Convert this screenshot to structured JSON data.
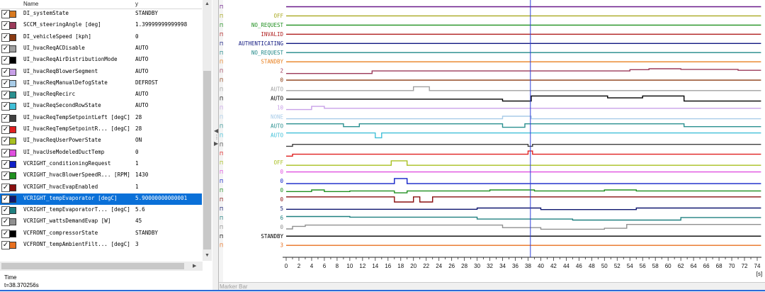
{
  "list": {
    "col_name": "Name",
    "col_value": "y",
    "rows": [
      {
        "name": "DI_systemState",
        "value": "STANDBY",
        "color": "#d97a20"
      },
      {
        "name": "SCCM_steeringAngle [deg]",
        "value": "1.39999999999998",
        "color": "#9b3a5a"
      },
      {
        "name": "DI_vehicleSpeed [kph]",
        "value": "0",
        "color": "#8a3a12"
      },
      {
        "name": "UI_hvacReqACDisable",
        "value": "AUTO",
        "color": "#a0a0a0"
      },
      {
        "name": "UI_hvacReqAirDistributionMode",
        "value": "AUTO",
        "color": "#000000"
      },
      {
        "name": "UI_hvacReqBlowerSegment",
        "value": "AUTO",
        "color": "#c8a0e8"
      },
      {
        "name": "UI_hvacReqManualDefogState",
        "value": "DEFROST",
        "color": "#a8cce8"
      },
      {
        "name": "UI_hvacReqRecirc",
        "value": "AUTO",
        "color": "#2a9090"
      },
      {
        "name": "UI_hvacReqSecondRowState",
        "value": "AUTO",
        "color": "#40c0d8"
      },
      {
        "name": "UI_hvacReqTempSetpointLeft [degC]",
        "value": "28",
        "color": "#404040"
      },
      {
        "name": "UI_hvacReqTempSetpointR... [degC]",
        "value": "28",
        "color": "#e02020"
      },
      {
        "name": "UI_hvacReqUserPowerState",
        "value": "ON",
        "color": "#a8c020"
      },
      {
        "name": "UI_hvacUseModeledDuctTemp",
        "value": "0",
        "color": "#e050e0"
      },
      {
        "name": "VCRIGHT_conditioningRequest",
        "value": "1",
        "color": "#1020c8"
      },
      {
        "name": "VCRIGHT_hvacBlowerSpeedR... [RPM]",
        "value": "1430",
        "color": "#209020"
      },
      {
        "name": "VCRIGHT_hvacEvapEnabled",
        "value": "1",
        "color": "#8a1010"
      },
      {
        "name": "VCRIGHT_tempEvaporator [degC]",
        "value": "5.90000000000001",
        "color": "#101870",
        "selected": true
      },
      {
        "name": "VCRIGHT_tempEvaporatorT... [degC]",
        "value": "5.6",
        "color": "#208080"
      },
      {
        "name": "VCRIGHT_wattsDemandEvap [W]",
        "value": "45",
        "color": "#909090"
      },
      {
        "name": "VCFRONT_compressorState",
        "value": "STANDBY",
        "color": "#000000"
      },
      {
        "name": "VCFRONT_tempAmbientFilt... [degC]",
        "value": "3",
        "color": "#e87020"
      }
    ]
  },
  "time": {
    "label": "Time",
    "value": "t=38.370256s"
  },
  "marker_bar_label": "Marker Bar",
  "plot": {
    "cursor_t": 38.37,
    "axis": {
      "min": 0,
      "max": 74,
      "tick_step": 2,
      "unit": "[s]"
    },
    "lanes": [
      {
        "label": "",
        "color": "#6a1a8a",
        "tag": "Π",
        "segs": [
          {
            "t0": 0,
            "t1": 75,
            "v": 0.5
          }
        ]
      },
      {
        "label": "OFF",
        "color": "#a8a820",
        "tag": "Π",
        "segs": [
          {
            "t0": 0,
            "t1": 75,
            "v": 0.5
          }
        ]
      },
      {
        "label": "NO_REQUEST",
        "color": "#209020",
        "tag": "Π",
        "segs": [
          {
            "t0": 0,
            "t1": 75,
            "v": 0.5
          }
        ]
      },
      {
        "label": "INVALID",
        "color": "#b02020",
        "tag": "Π",
        "segs": [
          {
            "t0": 0,
            "t1": 75,
            "v": 0.5
          }
        ]
      },
      {
        "label": "AUTHENTICATING",
        "color": "#101880",
        "tag": "Π",
        "segs": [
          {
            "t0": 0,
            "t1": 75,
            "v": 0.5
          }
        ]
      },
      {
        "label": "NO_REQUEST",
        "color": "#208888",
        "tag": "Π",
        "segs": [
          {
            "t0": 0,
            "t1": 75,
            "v": 0.5
          }
        ]
      },
      {
        "label": "STANDBY",
        "color": "#e88020",
        "tag": "Π",
        "segs": [
          {
            "t0": 0,
            "t1": 75,
            "v": 0.5
          }
        ]
      },
      {
        "label": "2",
        "color": "#9b3a5a",
        "tag": "Π",
        "segs": [
          {
            "t0": 0,
            "t1": 13.5,
            "v": 0.1
          },
          {
            "t0": 13.5,
            "t1": 54,
            "v": 0.5
          },
          {
            "t0": 54,
            "t1": 57,
            "v": 0.7
          },
          {
            "t0": 57,
            "t1": 62,
            "v": 0.85
          },
          {
            "t0": 62,
            "t1": 71,
            "v": 0.75
          },
          {
            "t0": 71,
            "t1": 75,
            "v": 0.6
          }
        ]
      },
      {
        "label": "0",
        "color": "#8a3a12",
        "tag": "Π",
        "segs": [
          {
            "t0": 0,
            "t1": 75,
            "v": 0.5
          }
        ]
      },
      {
        "label": "AUTO",
        "color": "#a0a0a0",
        "tag": "Π",
        "segs": [
          {
            "t0": 0,
            "t1": 20,
            "v": 0.3
          },
          {
            "t0": 20,
            "t1": 22.5,
            "v": 0.9
          },
          {
            "t0": 22.5,
            "t1": 75,
            "v": 0.3
          }
        ]
      },
      {
        "label": "AUTO",
        "color": "#000000",
        "tag": "Π",
        "segs": [
          {
            "t0": 0,
            "t1": 34,
            "v": 0.4
          },
          {
            "t0": 34,
            "t1": 38.5,
            "v": 0.1
          },
          {
            "t0": 38.5,
            "t1": 50.5,
            "v": 0.9
          },
          {
            "t0": 50.5,
            "t1": 56,
            "v": 0.6
          },
          {
            "t0": 56,
            "t1": 62.5,
            "v": 0.9
          },
          {
            "t0": 62.5,
            "t1": 75,
            "v": 0.1
          }
        ]
      },
      {
        "label": "10",
        "color": "#c8a0e8",
        "tag": "Π",
        "segs": [
          {
            "t0": 0,
            "t1": 4,
            "v": 0.2
          },
          {
            "t0": 4,
            "t1": 6,
            "v": 0.7
          },
          {
            "t0": 6,
            "t1": 75,
            "v": 0.4
          }
        ]
      },
      {
        "label": "NONE",
        "color": "#a8cce8",
        "tag": "Π",
        "segs": [
          {
            "t0": 0,
            "t1": 34,
            "v": 0.2
          },
          {
            "t0": 34,
            "t1": 38.5,
            "v": 0.6
          },
          {
            "t0": 38.5,
            "t1": 75,
            "v": 0.2
          }
        ]
      },
      {
        "label": "AUTO",
        "color": "#2a9090",
        "tag": "Π",
        "segs": [
          {
            "t0": 0,
            "t1": 9,
            "v": 0.85
          },
          {
            "t0": 9,
            "t1": 11.5,
            "v": 0.4
          },
          {
            "t0": 11.5,
            "t1": 34,
            "v": 0.85
          },
          {
            "t0": 34,
            "t1": 37.5,
            "v": 0.3
          },
          {
            "t0": 37.5,
            "t1": 62.5,
            "v": 0.85
          },
          {
            "t0": 62.5,
            "t1": 75,
            "v": 0.4
          }
        ]
      },
      {
        "label": "AUTO",
        "color": "#40c0d8",
        "tag": "Π",
        "segs": [
          {
            "t0": 0,
            "t1": 14,
            "v": 0.85
          },
          {
            "t0": 14,
            "t1": 15,
            "v": 0.1
          },
          {
            "t0": 15,
            "t1": 75,
            "v": 0.85
          }
        ]
      },
      {
        "label": "",
        "color": "#404040",
        "tag": "Π",
        "segs": [
          {
            "t0": 0,
            "t1": 1,
            "v": 0.2
          },
          {
            "t0": 1,
            "t1": 38,
            "v": 0.5
          },
          {
            "t0": 38,
            "t1": 38.7,
            "v": 0.2
          },
          {
            "t0": 38.7,
            "t1": 75,
            "v": 0.5
          }
        ]
      },
      {
        "label": "",
        "color": "#e02020",
        "tag": "Π",
        "segs": [
          {
            "t0": 0,
            "t1": 1,
            "v": 0.1
          },
          {
            "t0": 1,
            "t1": 38,
            "v": 0.4
          },
          {
            "t0": 38,
            "t1": 38.7,
            "v": 0.9
          },
          {
            "t0": 38.7,
            "t1": 75,
            "v": 0.4
          }
        ]
      },
      {
        "label": "OFF",
        "color": "#a8c020",
        "tag": "Π",
        "segs": [
          {
            "t0": 0,
            "t1": 16.5,
            "v": 0.1
          },
          {
            "t0": 16.5,
            "t1": 19,
            "v": 0.8
          },
          {
            "t0": 19,
            "t1": 75,
            "v": 0.1
          }
        ]
      },
      {
        "label": "0",
        "color": "#e050e0",
        "tag": "Π",
        "segs": [
          {
            "t0": 0,
            "t1": 75,
            "v": 0.5
          }
        ]
      },
      {
        "label": "0",
        "color": "#1020c8",
        "tag": "Π",
        "segs": [
          {
            "t0": 0,
            "t1": 17,
            "v": 0.1
          },
          {
            "t0": 17,
            "t1": 19,
            "v": 0.9
          },
          {
            "t0": 19,
            "t1": 75,
            "v": 0.1
          }
        ]
      },
      {
        "label": "0",
        "color": "#209020",
        "tag": "Π",
        "segs": [
          {
            "t0": 0,
            "t1": 4,
            "v": 0.3
          },
          {
            "t0": 4,
            "t1": 6,
            "v": 0.55
          },
          {
            "t0": 6,
            "t1": 10,
            "v": 0.3
          },
          {
            "t0": 10,
            "t1": 17,
            "v": 0.4
          },
          {
            "t0": 17,
            "t1": 19,
            "v": 0.1
          },
          {
            "t0": 19,
            "t1": 32,
            "v": 0.4
          },
          {
            "t0": 32,
            "t1": 39,
            "v": 0.55
          },
          {
            "t0": 39,
            "t1": 50,
            "v": 0.4
          },
          {
            "t0": 50,
            "t1": 55,
            "v": 0.55
          },
          {
            "t0": 55,
            "t1": 75,
            "v": 0.4
          }
        ]
      },
      {
        "label": "0",
        "color": "#8a1010",
        "tag": "Π",
        "segs": [
          {
            "t0": 0,
            "t1": 17,
            "v": 0.9
          },
          {
            "t0": 17,
            "t1": 20,
            "v": 0.1
          },
          {
            "t0": 20,
            "t1": 21,
            "v": 0.9
          },
          {
            "t0": 21,
            "t1": 23,
            "v": 0.1
          },
          {
            "t0": 23,
            "t1": 75,
            "v": 0.9
          }
        ]
      },
      {
        "label": "5",
        "color": "#101870",
        "tag": "Π",
        "segs": [
          {
            "t0": 0,
            "t1": 30,
            "v": 0.4
          },
          {
            "t0": 30,
            "t1": 40,
            "v": 0.6
          },
          {
            "t0": 40,
            "t1": 55,
            "v": 0.35
          },
          {
            "t0": 55,
            "t1": 75,
            "v": 0.6
          }
        ]
      },
      {
        "label": "6",
        "color": "#208080",
        "tag": "Π",
        "segs": [
          {
            "t0": 0,
            "t1": 10,
            "v": 0.7
          },
          {
            "t0": 10,
            "t1": 30,
            "v": 0.6
          },
          {
            "t0": 30,
            "t1": 45,
            "v": 0.3
          },
          {
            "t0": 45,
            "t1": 62,
            "v": 0.15
          },
          {
            "t0": 62,
            "t1": 75,
            "v": 0.55
          }
        ]
      },
      {
        "label": "0",
        "color": "#909090",
        "tag": "Π",
        "segs": [
          {
            "t0": 0,
            "t1": 1,
            "v": 0.2
          },
          {
            "t0": 1,
            "t1": 3,
            "v": 0.6
          },
          {
            "t0": 3,
            "t1": 34,
            "v": 0.8
          },
          {
            "t0": 34,
            "t1": 40,
            "v": 0.4
          },
          {
            "t0": 40,
            "t1": 50,
            "v": 0.15
          },
          {
            "t0": 50,
            "t1": 53.5,
            "v": 0.3
          },
          {
            "t0": 53.5,
            "t1": 75,
            "v": 0.9
          }
        ]
      },
      {
        "label": "STANDBY",
        "color": "#000000",
        "tag": "Π",
        "segs": [
          {
            "t0": 0,
            "t1": 75,
            "v": 0.5
          }
        ]
      },
      {
        "label": "3",
        "color": "#e87020",
        "tag": "Π",
        "segs": [
          {
            "t0": 0,
            "t1": 75,
            "v": 0.5
          }
        ]
      }
    ]
  }
}
